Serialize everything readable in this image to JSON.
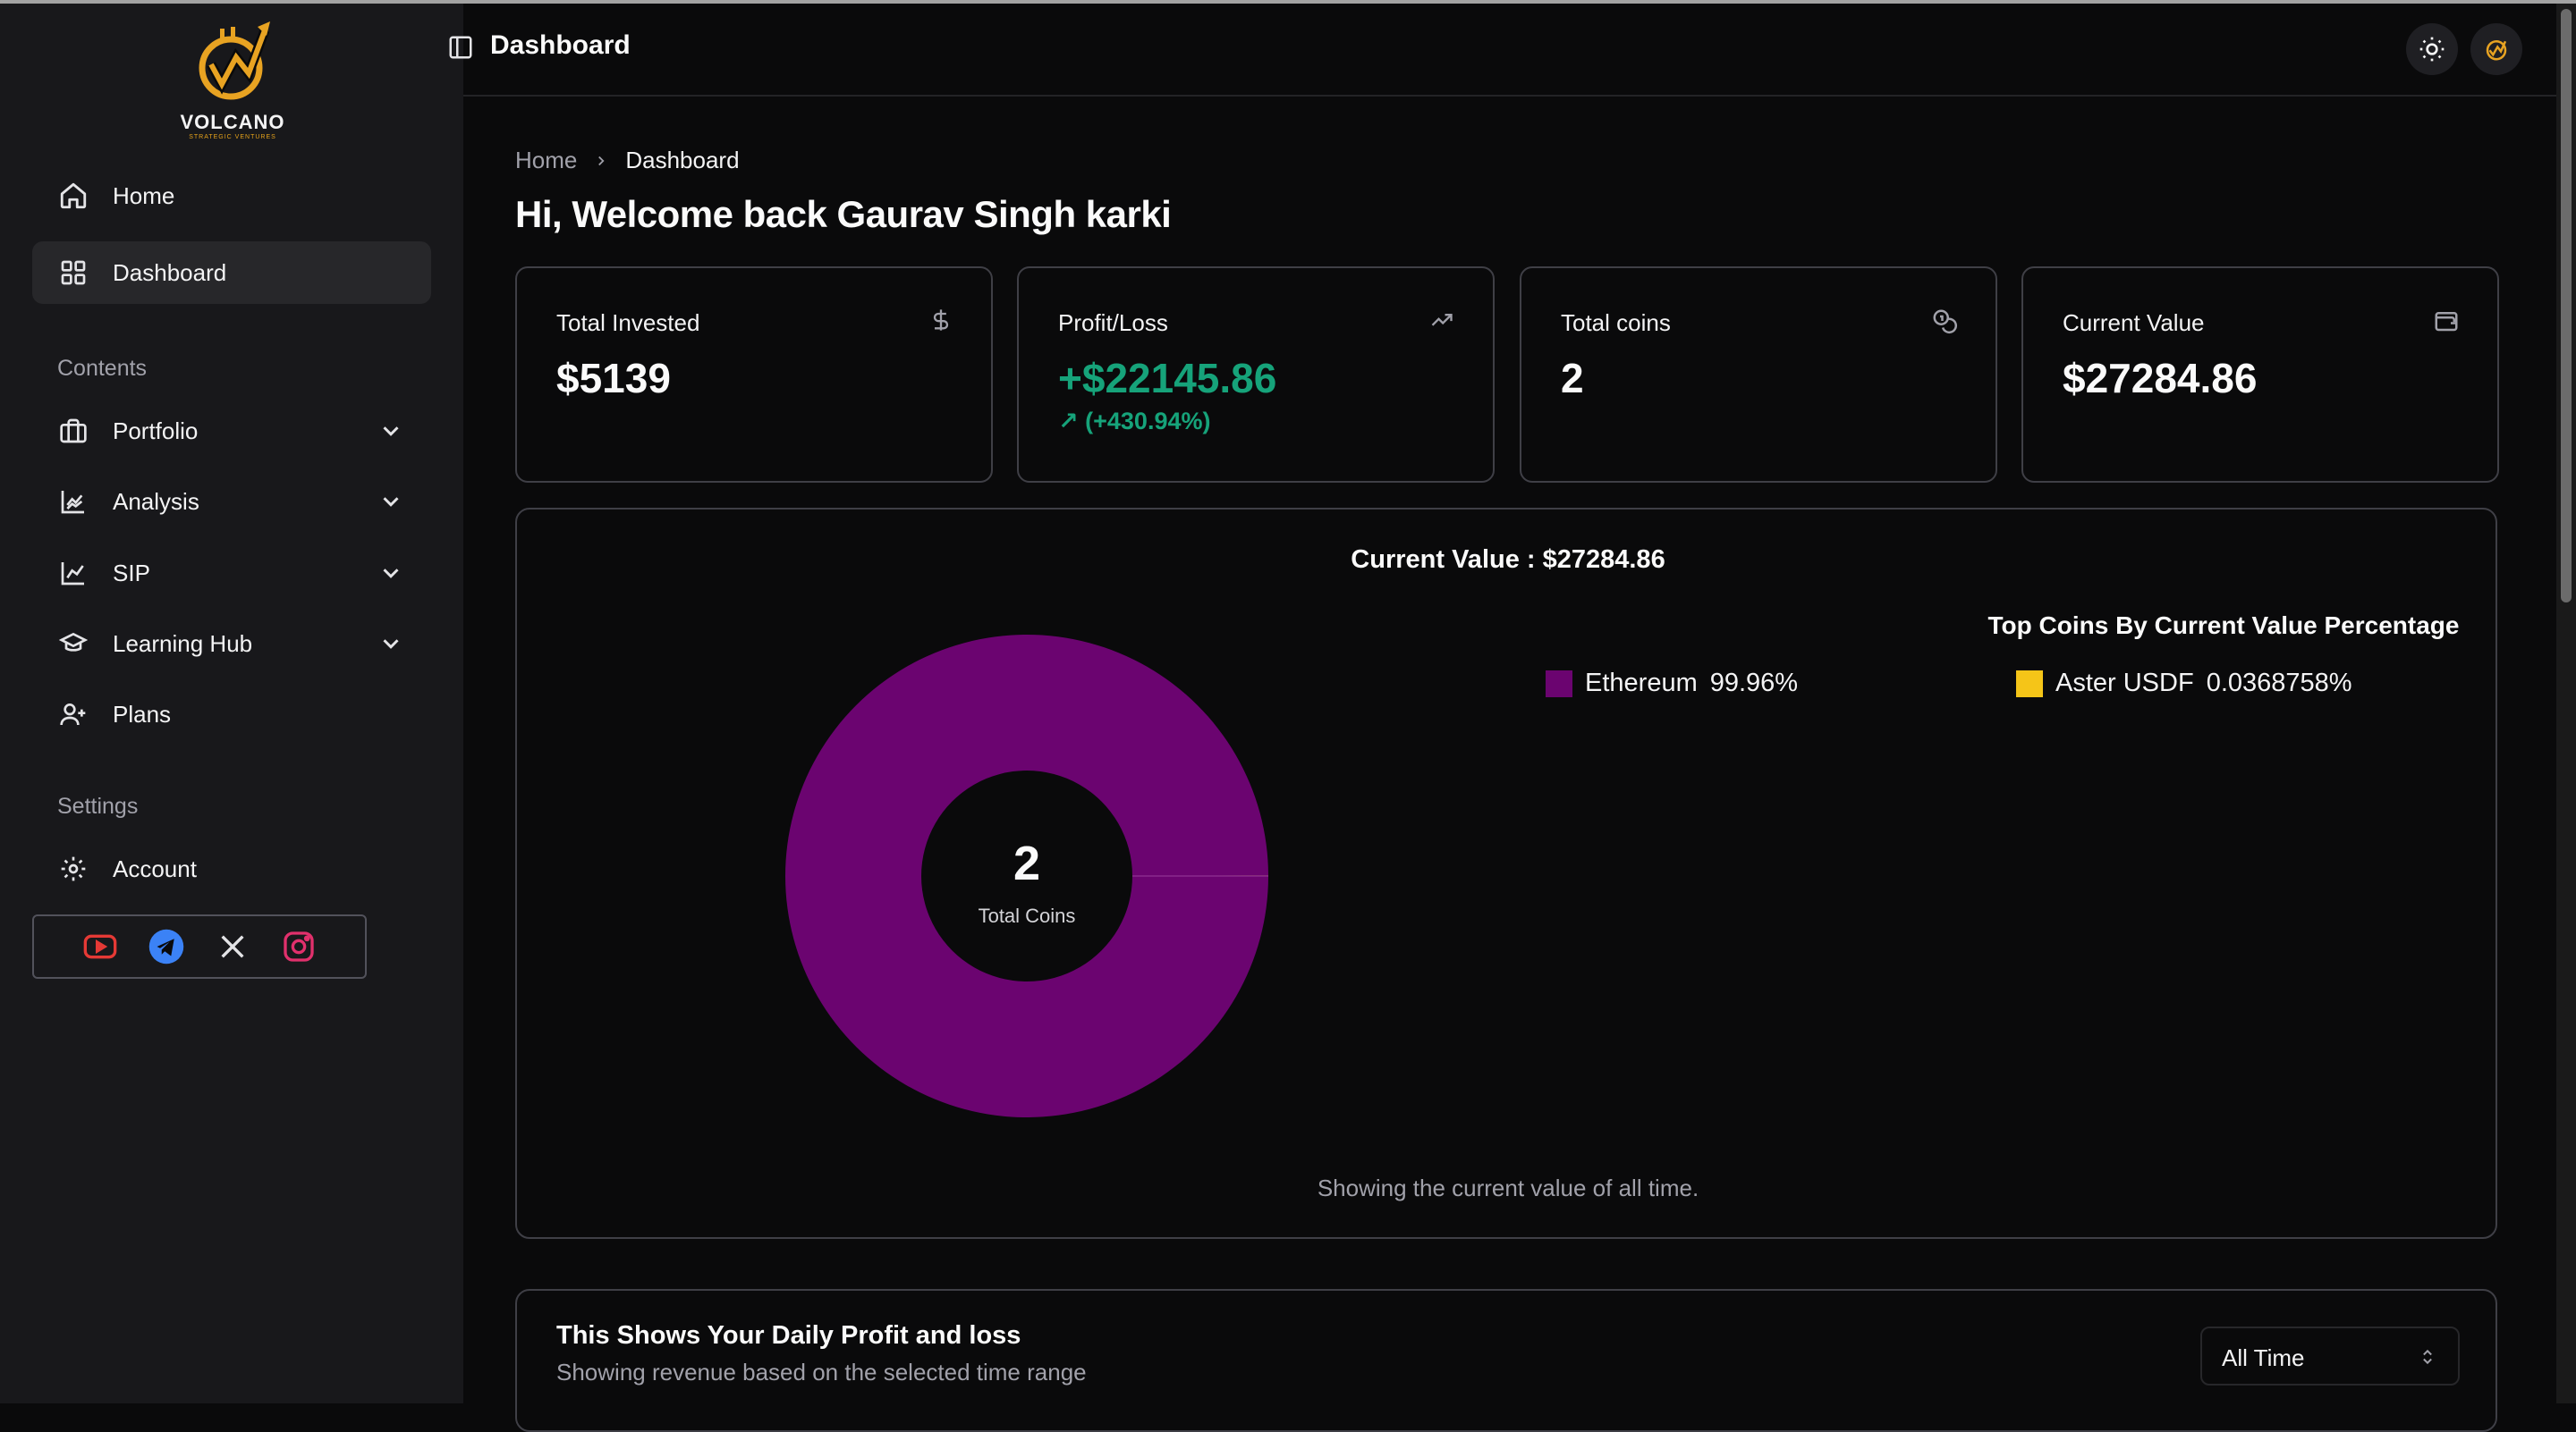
{
  "app": {
    "brand": "VOLCANO",
    "brand_tagline": "STRATEGIC VENTURES",
    "header_title": "Dashboard"
  },
  "sidebar": {
    "items": [
      {
        "label": "Home",
        "icon": "home-icon"
      },
      {
        "label": "Dashboard",
        "icon": "grid-icon",
        "active": true
      }
    ],
    "contents_label": "Contents",
    "contents": [
      {
        "label": "Portfolio",
        "icon": "briefcase-icon"
      },
      {
        "label": "Analysis",
        "icon": "area-chart-icon"
      },
      {
        "label": "SIP",
        "icon": "line-chart-icon"
      },
      {
        "label": "Learning Hub",
        "icon": "graduation-cap-icon"
      },
      {
        "label": "Plans",
        "icon": "user-plus-icon"
      }
    ],
    "settings_label": "Settings",
    "settings": [
      {
        "label": "Account",
        "icon": "gear-icon"
      }
    ],
    "social": [
      "youtube-icon",
      "telegram-icon",
      "x-icon",
      "instagram-icon"
    ]
  },
  "breadcrumb": {
    "home": "Home",
    "current": "Dashboard"
  },
  "welcome": "Hi, Welcome back Gaurav Singh karki",
  "cards": {
    "invested": {
      "title": "Total Invested",
      "value": "$5139",
      "icon": "dollar-icon"
    },
    "profit": {
      "title": "Profit/Loss",
      "value": "+$22145.86",
      "change": "(+430.94%)",
      "icon": "trending-up-icon"
    },
    "coins": {
      "title": "Total coins",
      "value": "2",
      "icon": "coins-icon"
    },
    "current": {
      "title": "Current Value",
      "value": "$27284.86",
      "icon": "wallet-icon"
    }
  },
  "colors": {
    "positive": "#16a37a",
    "ethereum": "#6b0470",
    "aster": "#f5c518"
  },
  "chart_panel": {
    "title": "Current Value : $27284.86",
    "legend_title": "Top Coins By Current Value Percentage",
    "center_value": "2",
    "center_label": "Total Coins",
    "footer": "Showing the current value of all time."
  },
  "chart_data": {
    "type": "pie",
    "title": "Current Value : $27284.86",
    "categories": [
      "Ethereum",
      "Aster USDF"
    ],
    "values": [
      99.96,
      0.0368758
    ],
    "labels": [
      "99.96%",
      "0.0368758%"
    ],
    "legend": "top-right"
  },
  "daily_panel": {
    "title": "This Shows Your Daily Profit and loss",
    "subtitle": "Showing revenue based on the selected time range",
    "range_selected": "All Time"
  }
}
